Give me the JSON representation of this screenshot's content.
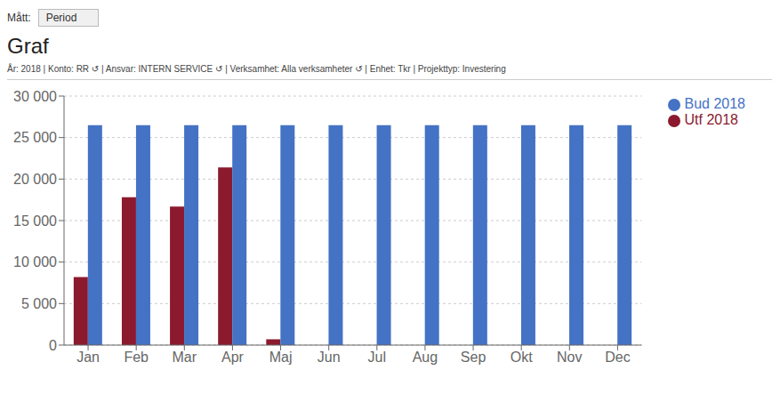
{
  "chart_data": {
    "type": "bar",
    "title": "Graf",
    "subtitle": "År: 2018   |   Konto: RR  ↺   |   Ansvar: INTERN SERVICE  ↺   |   Verksamhet: Alla verksamheter  ↺   |   Enhet: Tkr   |   Projekttyp: Investering",
    "annotations": [
      "Mått:",
      "Period"
    ],
    "categories": [
      "Jan",
      "Feb",
      "Mar",
      "Apr",
      "Maj",
      "Jun",
      "Jul",
      "Aug",
      "Sep",
      "Okt",
      "Nov",
      "Dec"
    ],
    "series": [
      {
        "name": "Utf 2018",
        "color": "#8B1A2E",
        "values": [
          8200,
          17800,
          16700,
          21400,
          700,
          null,
          null,
          null,
          null,
          null,
          null,
          null
        ]
      },
      {
        "name": "Bud 2018",
        "color": "#4472C4",
        "values": [
          26500,
          26500,
          26500,
          26500,
          26500,
          26500,
          26500,
          26500,
          26500,
          26500,
          26500,
          26500
        ]
      }
    ],
    "ylim": [
      0,
      30000
    ],
    "yticks": [
      0,
      {
        "value": 5000,
        "label": "5 000"
      },
      {
        "value": 10000,
        "label": "10 000"
      },
      {
        "value": 15000,
        "label": "15 000"
      },
      {
        "value": 20000,
        "label": "20 000"
      },
      {
        "value": 25000,
        "label": "25 000"
      },
      {
        "value": 30000,
        "label": "30 000"
      }
    ],
    "grid": true,
    "legend": "upper right"
  }
}
